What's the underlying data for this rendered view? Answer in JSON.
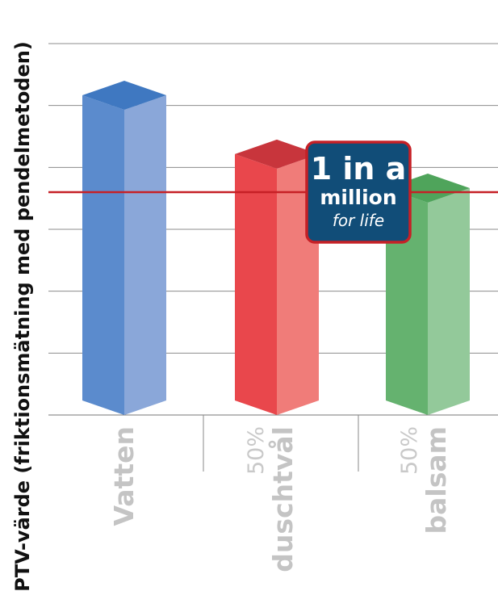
{
  "chart_data": {
    "type": "bar",
    "ylabel": "PTV-värde (friktionsmätning med pendelmetoden)",
    "categories": [
      {
        "prefix": "",
        "label": "Vatten"
      },
      {
        "prefix": "50%",
        "label": "duschtvål"
      },
      {
        "prefix": "50%",
        "label": "balsam"
      }
    ],
    "values": [
      5.4,
      4.45,
      3.9
    ],
    "ylim": [
      0,
      6
    ],
    "grid": true,
    "reference_line": 3.6,
    "colors": {
      "bars_front": [
        "#5b8bcd",
        "#e9474c",
        "#65b26f"
      ],
      "bars_side": [
        "#8aa7d9",
        "#f07c79",
        "#93c99a"
      ],
      "bars_top": [
        "#3f78c1",
        "#c8353c",
        "#4fa45b"
      ],
      "reference_line": "#c62026",
      "gridline": "#8c8c8c"
    }
  },
  "badge": {
    "line1": "1 in a",
    "line2": "million",
    "line3": "for life",
    "colors": {
      "fill": "#114d78",
      "border": "#c62026"
    }
  }
}
